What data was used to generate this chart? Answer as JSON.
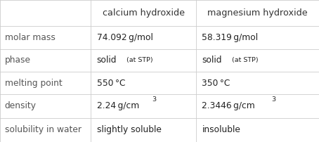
{
  "col_headers": [
    "",
    "calcium hydroxide",
    "magnesium hydroxide"
  ],
  "rows": [
    {
      "label": "molar mass",
      "col1": {
        "text": "74.092 g/mol",
        "type": "normal"
      },
      "col2": {
        "text": "58.319 g/mol",
        "type": "normal"
      }
    },
    {
      "label": "phase",
      "col1": {
        "main": "solid",
        "sub": "(at STP)",
        "type": "phase"
      },
      "col2": {
        "main": "solid",
        "sub": "(at STP)",
        "type": "phase"
      }
    },
    {
      "label": "melting point",
      "col1": {
        "text": "550 °C",
        "type": "normal"
      },
      "col2": {
        "text": "350 °C",
        "type": "normal"
      }
    },
    {
      "label": "density",
      "col1": {
        "base": "2.24 g/cm",
        "sup": "3",
        "type": "super"
      },
      "col2": {
        "base": "2.3446 g/cm",
        "sup": "3",
        "type": "super"
      }
    },
    {
      "label": "solubility in water",
      "col1": {
        "text": "slightly soluble",
        "type": "normal"
      },
      "col2": {
        "text": "insoluble",
        "type": "normal"
      }
    }
  ],
  "background_color": "#ffffff",
  "line_color": "#cccccc",
  "header_text_color": "#333333",
  "label_text_color": "#555555",
  "data_text_color": "#222222",
  "col_splits": [
    0.0,
    0.285,
    0.615,
    1.0
  ],
  "row_splits": [
    0.0,
    0.185,
    0.345,
    0.505,
    0.665,
    0.83,
    1.0
  ],
  "font_size_header": 9.2,
  "font_size_label": 8.8,
  "font_size_data": 8.8,
  "font_size_small": 6.8,
  "font_size_super": 6.8
}
